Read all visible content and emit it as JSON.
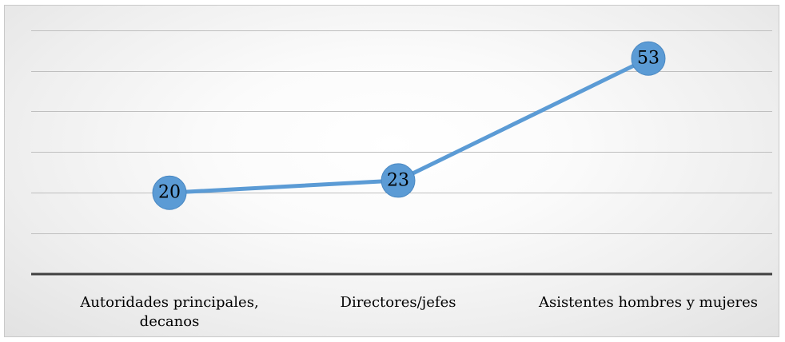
{
  "chart_data": {
    "type": "line",
    "categories": [
      "Autoridades principales, decanos",
      "Directores/jefes",
      "Asistentes hombres y mujeres"
    ],
    "category_lines": [
      [
        "Autoridades principales,",
        "decanos"
      ],
      [
        "Directores/jefes"
      ],
      [
        "Asistentes hombres y mujeres"
      ]
    ],
    "series": [
      {
        "values": [
          20,
          23,
          53
        ]
      }
    ],
    "ylim": [
      0,
      60
    ],
    "ytick_step": 10,
    "grid": true,
    "legend": "none",
    "data_labels": true,
    "colors": {
      "line": "#5b9bd5",
      "marker": "#5b9bd5",
      "grid": "#bfbfbf",
      "axis": "#404040"
    }
  }
}
